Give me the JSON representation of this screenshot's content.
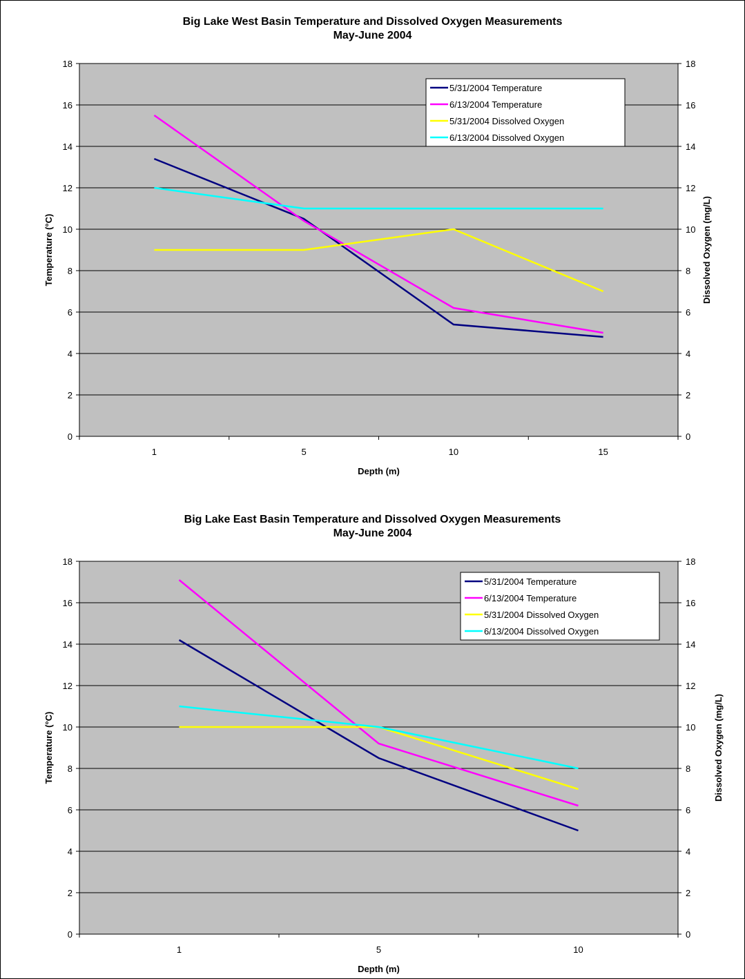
{
  "chart_data": [
    {
      "type": "line",
      "title": "Big Lake West Basin Temperature and Dissolved Oxygen Measurements",
      "subtitle": "May-June 2004",
      "xlabel": "Depth (m)",
      "ylabel": "Temperature (°C)",
      "y2label": "Dissolved Oxygen (mg/L)",
      "categories": [
        "1",
        "5",
        "10",
        "15"
      ],
      "ylim": [
        0,
        18
      ],
      "y2lim": [
        0,
        18
      ],
      "yticks": [
        "0",
        "2",
        "4",
        "6",
        "8",
        "10",
        "12",
        "14",
        "16",
        "18"
      ],
      "y2ticks": [
        "0",
        "2",
        "4",
        "6",
        "8",
        "10",
        "12",
        "14",
        "16",
        "18"
      ],
      "grid": "horizontal",
      "legend_position": "top-right",
      "plot_background": "#c0c0c0",
      "series": [
        {
          "name": "5/31/2004 Temperature",
          "color": "#000080",
          "axis": "left",
          "values": [
            13.4,
            10.5,
            5.4,
            4.8
          ]
        },
        {
          "name": "6/13/2004 Temperature",
          "color": "#ff00ff",
          "axis": "left",
          "values": [
            15.5,
            10.4,
            6.2,
            5.0
          ]
        },
        {
          "name": "5/31/2004 Dissolved Oxygen",
          "color": "#ffff00",
          "axis": "right",
          "values": [
            9,
            9,
            10,
            7
          ]
        },
        {
          "name": "6/13/2004 Dissolved Oxygen",
          "color": "#00ffff",
          "axis": "right",
          "values": [
            12,
            11,
            11,
            11
          ]
        }
      ]
    },
    {
      "type": "line",
      "title": "Big Lake East Basin Temperature and Dissolved Oxygen Measurements",
      "subtitle": "May-June 2004",
      "xlabel": "Depth (m)",
      "ylabel": "Temperature (°C)",
      "y2label": "Dissolved Oxygen (mg/L)",
      "categories": [
        "1",
        "5",
        "10"
      ],
      "ylim": [
        0,
        18
      ],
      "y2lim": [
        0,
        18
      ],
      "yticks": [
        "0",
        "2",
        "4",
        "6",
        "8",
        "10",
        "12",
        "14",
        "16",
        "18"
      ],
      "y2ticks": [
        "0",
        "2",
        "4",
        "6",
        "8",
        "10",
        "12",
        "14",
        "16",
        "18"
      ],
      "grid": "horizontal",
      "legend_position": "top-right",
      "plot_background": "#c0c0c0",
      "series": [
        {
          "name": "5/31/2004 Temperature",
          "color": "#000080",
          "axis": "left",
          "values": [
            14.2,
            8.5,
            5.0
          ]
        },
        {
          "name": "6/13/2004 Temperature",
          "color": "#ff00ff",
          "axis": "left",
          "values": [
            17.1,
            9.2,
            6.2
          ]
        },
        {
          "name": "5/31/2004 Dissolved Oxygen",
          "color": "#ffff00",
          "axis": "right",
          "values": [
            10,
            10,
            7
          ]
        },
        {
          "name": "6/13/2004 Dissolved Oxygen",
          "color": "#00ffff",
          "axis": "right",
          "values": [
            11,
            10,
            8
          ]
        }
      ]
    }
  ]
}
